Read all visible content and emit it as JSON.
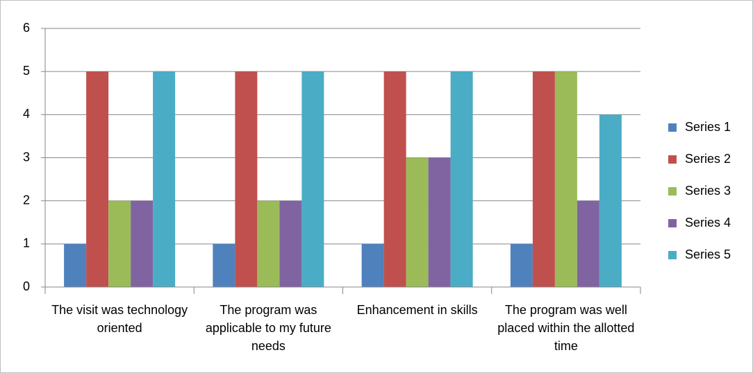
{
  "chart_data": {
    "type": "bar",
    "categories": [
      "The visit was technology oriented",
      "The program was applicable to my future needs",
      "Enhancement in skills",
      "The program was well placed within the allotted time"
    ],
    "series": [
      {
        "name": "Series 1",
        "color": "#4f81bd",
        "values": [
          1,
          1,
          1,
          1
        ]
      },
      {
        "name": "Series 2",
        "color": "#c0504d",
        "values": [
          5,
          5,
          5,
          5
        ]
      },
      {
        "name": "Series 3",
        "color": "#9bbb59",
        "values": [
          2,
          2,
          3,
          5
        ]
      },
      {
        "name": "Series 4",
        "color": "#8064a2",
        "values": [
          2,
          2,
          3,
          2
        ]
      },
      {
        "name": "Series 5",
        "color": "#4bacc6",
        "values": [
          5,
          5,
          5,
          4
        ]
      }
    ],
    "ylim": [
      0,
      6
    ],
    "yticks": [
      0,
      1,
      2,
      3,
      4,
      5,
      6
    ],
    "grid": true,
    "legend": "right"
  }
}
